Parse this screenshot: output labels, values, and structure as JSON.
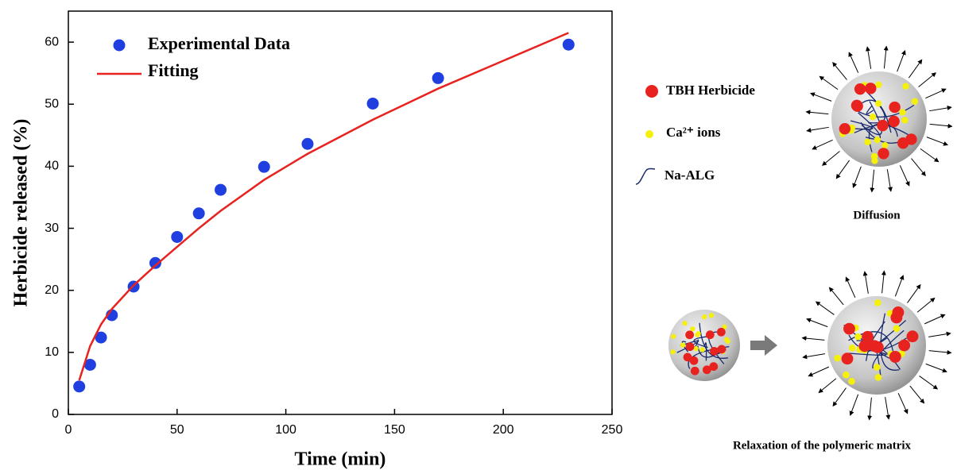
{
  "chart_data": {
    "type": "scatter",
    "xlabel": "Time (min)",
    "ylabel": "Herbicide released (%)",
    "xlim": [
      0,
      250
    ],
    "xticks": [
      0,
      50,
      100,
      150,
      200,
      250
    ],
    "ylim": [
      0,
      65
    ],
    "yticks": [
      0,
      10,
      20,
      30,
      40,
      50,
      60
    ],
    "legend": "upper left",
    "series": [
      {
        "name": "Experimental Data",
        "color": "#1f3fe0",
        "mode": "markers",
        "x": [
          5,
          10,
          15,
          20,
          30,
          40,
          50,
          60,
          70,
          90,
          110,
          140,
          170,
          230
        ],
        "values": [
          4.5,
          8,
          12.4,
          16,
          20.6,
          24.4,
          28.6,
          32.4,
          36.2,
          39.9,
          43.6,
          50.1,
          54.2,
          59.6
        ]
      },
      {
        "name": "Fitting",
        "color": "#e8231f",
        "mode": "lines",
        "x": [
          5,
          10,
          15,
          20,
          30,
          40,
          50,
          60,
          70,
          90,
          110,
          140,
          170,
          200,
          230
        ],
        "values": [
          5.5,
          11,
          14.5,
          17,
          20.8,
          24,
          27,
          30,
          32.8,
          37.8,
          42,
          47.5,
          52.5,
          57,
          61.5
        ]
      }
    ]
  },
  "diagram": {
    "legend": [
      "TBH Herbicide",
      "Ca²⁺ ions",
      "Na-ALG"
    ],
    "top_label": "Diffusion",
    "bottom_label": "Relaxation of the polymeric matrix"
  }
}
